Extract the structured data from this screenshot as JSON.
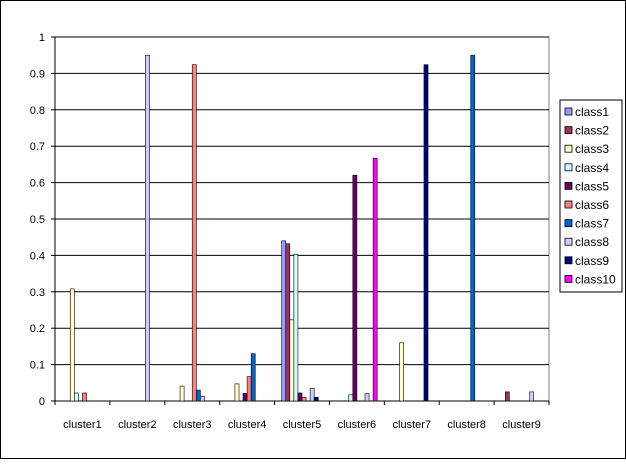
{
  "chart_data": {
    "type": "bar",
    "categories": [
      "cluster1",
      "cluster2",
      "cluster3",
      "cluster4",
      "cluster5",
      "cluster6",
      "cluster7",
      "cluster8",
      "cluster9"
    ],
    "ylim": [
      0,
      1
    ],
    "yticks": [
      "0",
      "0.1",
      "0.2",
      "0.3",
      "0.4",
      "0.5",
      "0.6",
      "0.7",
      "0.8",
      "0.9",
      "1"
    ],
    "grid": true,
    "legend_position": "right",
    "series": [
      {
        "name": "class1",
        "color": "#9999ff",
        "values": [
          0,
          0,
          0,
          0,
          0.44,
          0,
          0,
          0,
          0
        ]
      },
      {
        "name": "class2",
        "color": "#993366",
        "values": [
          0,
          0,
          0,
          0,
          0.432,
          0,
          0,
          0,
          0.025
        ]
      },
      {
        "name": "class3",
        "color": "#ffffcc",
        "values": [
          0.308,
          0,
          0.041,
          0.047,
          0.223,
          0,
          0.16,
          0,
          0
        ]
      },
      {
        "name": "class4",
        "color": "#ccffff",
        "values": [
          0.022,
          0,
          0,
          0,
          0.403,
          0.017,
          0,
          0,
          0
        ]
      },
      {
        "name": "class5",
        "color": "#660066",
        "values": [
          0,
          0,
          0,
          0.021,
          0.022,
          0.62,
          0,
          0,
          0
        ]
      },
      {
        "name": "class6",
        "color": "#ff8080",
        "values": [
          0.022,
          0,
          0.924,
          0.067,
          0.01,
          0,
          0,
          0,
          0
        ]
      },
      {
        "name": "class7",
        "color": "#0066cc",
        "values": [
          0,
          0,
          0.03,
          0.13,
          0,
          0,
          0,
          0.95,
          0
        ]
      },
      {
        "name": "class8",
        "color": "#ccccff",
        "values": [
          0,
          0.95,
          0.013,
          0,
          0.035,
          0.02,
          0,
          0,
          0.025
        ]
      },
      {
        "name": "class9",
        "color": "#000080",
        "values": [
          0,
          0,
          0,
          0,
          0.01,
          0,
          0.924,
          0,
          0
        ]
      },
      {
        "name": "class10",
        "color": "#ff00ff",
        "values": [
          0,
          0,
          0,
          0,
          0,
          0.667,
          0,
          0,
          0
        ]
      }
    ]
  }
}
